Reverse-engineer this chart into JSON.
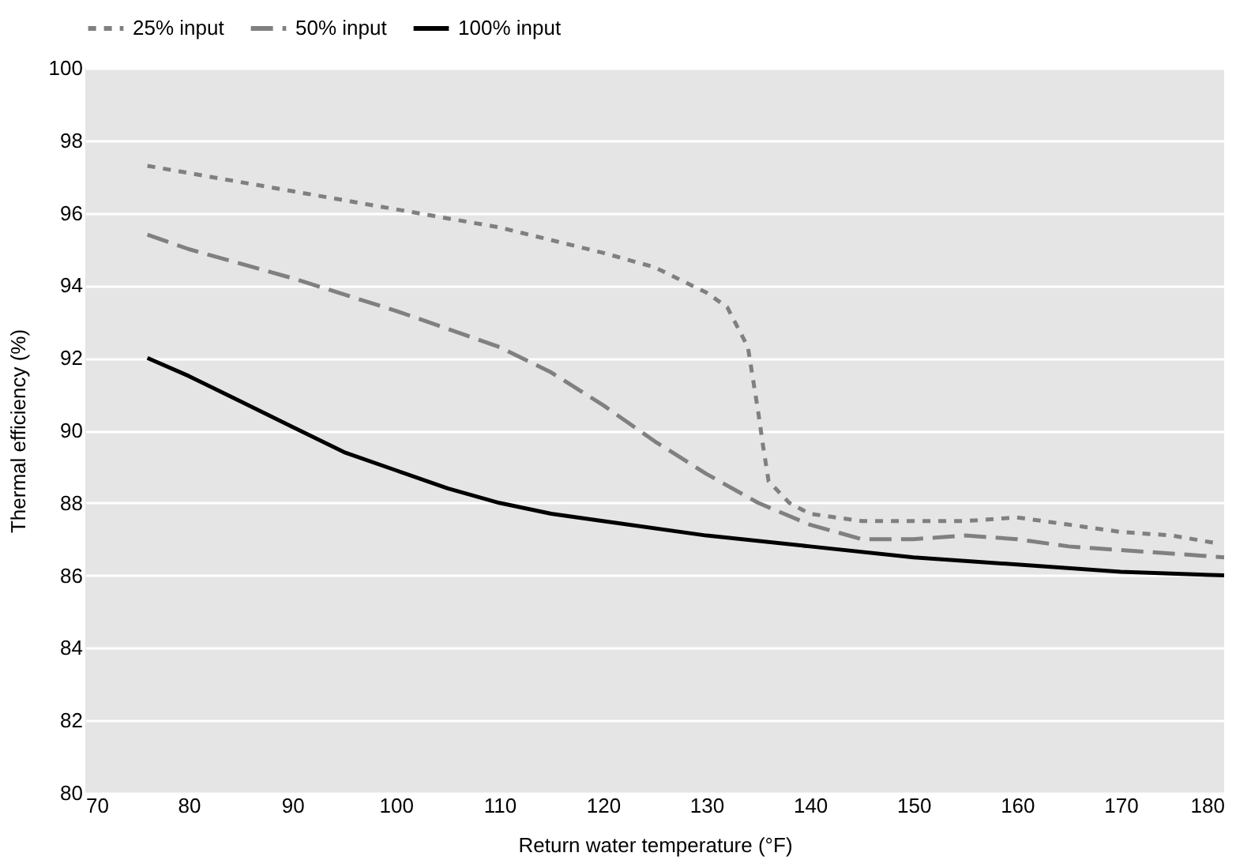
{
  "chart_data": {
    "type": "line",
    "xlabel": "Return water temperature (°F)",
    "ylabel": "Thermal efficiency (%)",
    "xlim": [
      70,
      180
    ],
    "xticks": [
      70,
      80,
      90,
      100,
      110,
      120,
      130,
      140,
      150,
      160,
      170,
      180
    ],
    "ylim": [
      80,
      100
    ],
    "yticks": [
      80,
      82,
      84,
      86,
      88,
      90,
      92,
      94,
      96,
      98,
      100
    ],
    "grid": "y",
    "legend": "top",
    "marker": "none",
    "series": [
      {
        "name": "25% input",
        "color": "#808080",
        "line_style": "dotted",
        "x": [
          76,
          80,
          90,
          100,
          110,
          120,
          125,
          130,
          132,
          134,
          135,
          135.5,
          136,
          138,
          140,
          145,
          150,
          155,
          160,
          165,
          170,
          175,
          179
        ],
        "values": [
          97.3,
          97.1,
          96.6,
          96.1,
          95.6,
          94.9,
          94.5,
          93.8,
          93.4,
          92.3,
          90.5,
          89.5,
          88.6,
          88.0,
          87.7,
          87.5,
          87.5,
          87.5,
          87.6,
          87.4,
          87.2,
          87.1,
          86.9
        ]
      },
      {
        "name": "50% input",
        "color": "#808080",
        "line_style": "dashed",
        "x": [
          76,
          80,
          90,
          100,
          110,
          115,
          120,
          125,
          130,
          135,
          140,
          145,
          150,
          155,
          160,
          165,
          170,
          175,
          180
        ],
        "values": [
          95.4,
          95.0,
          94.2,
          93.3,
          92.3,
          91.6,
          90.7,
          89.7,
          88.8,
          88.0,
          87.4,
          87.0,
          87.0,
          87.1,
          87.0,
          86.8,
          86.7,
          86.6,
          86.5
        ]
      },
      {
        "name": "100% input",
        "color": "#000000",
        "line_style": "solid",
        "x": [
          76,
          80,
          85,
          90,
          95,
          100,
          105,
          110,
          115,
          120,
          130,
          140,
          150,
          160,
          170,
          180
        ],
        "values": [
          92.0,
          91.5,
          90.8,
          90.1,
          89.4,
          88.9,
          88.4,
          88.0,
          87.7,
          87.5,
          87.1,
          86.8,
          86.5,
          86.3,
          86.1,
          86.0
        ]
      }
    ]
  }
}
